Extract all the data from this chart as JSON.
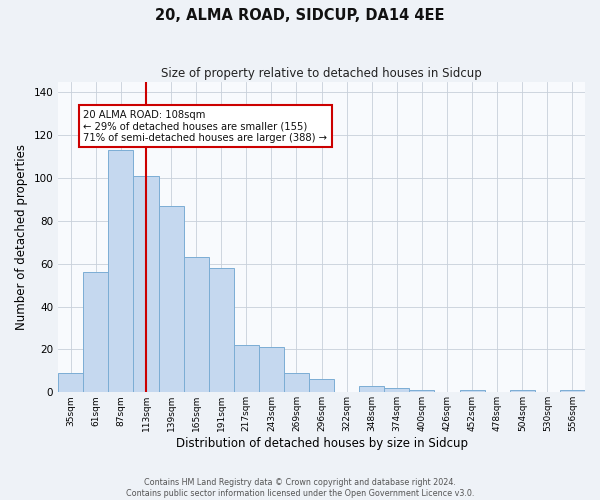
{
  "title": "20, ALMA ROAD, SIDCUP, DA14 4EE",
  "subtitle": "Size of property relative to detached houses in Sidcup",
  "xlabel": "Distribution of detached houses by size in Sidcup",
  "ylabel": "Number of detached properties",
  "bin_labels": [
    "35sqm",
    "61sqm",
    "87sqm",
    "113sqm",
    "139sqm",
    "165sqm",
    "191sqm",
    "217sqm",
    "243sqm",
    "269sqm",
    "296sqm",
    "322sqm",
    "348sqm",
    "374sqm",
    "400sqm",
    "426sqm",
    "452sqm",
    "478sqm",
    "504sqm",
    "530sqm",
    "556sqm"
  ],
  "bar_values": [
    9,
    56,
    113,
    101,
    87,
    63,
    58,
    22,
    21,
    9,
    6,
    0,
    3,
    2,
    1,
    0,
    1,
    0,
    1,
    0,
    1
  ],
  "bar_color": "#c5d8ef",
  "bar_edge_color": "#7badd4",
  "vline_index": 3,
  "vline_color": "#cc0000",
  "annotation_text_line1": "20 ALMA ROAD: 108sqm",
  "annotation_text_line2": "← 29% of detached houses are smaller (155)",
  "annotation_text_line3": "71% of semi-detached houses are larger (388) →",
  "annotation_box_facecolor": "#ffffff",
  "annotation_box_edgecolor": "#cc0000",
  "ylim": [
    0,
    145
  ],
  "yticks": [
    0,
    20,
    40,
    60,
    80,
    100,
    120,
    140
  ],
  "background_color": "#eef2f7",
  "plot_background_color": "#f8fafd",
  "grid_color": "#c8d0da",
  "footer_line1": "Contains HM Land Registry data © Crown copyright and database right 2024.",
  "footer_line2": "Contains public sector information licensed under the Open Government Licence v3.0."
}
